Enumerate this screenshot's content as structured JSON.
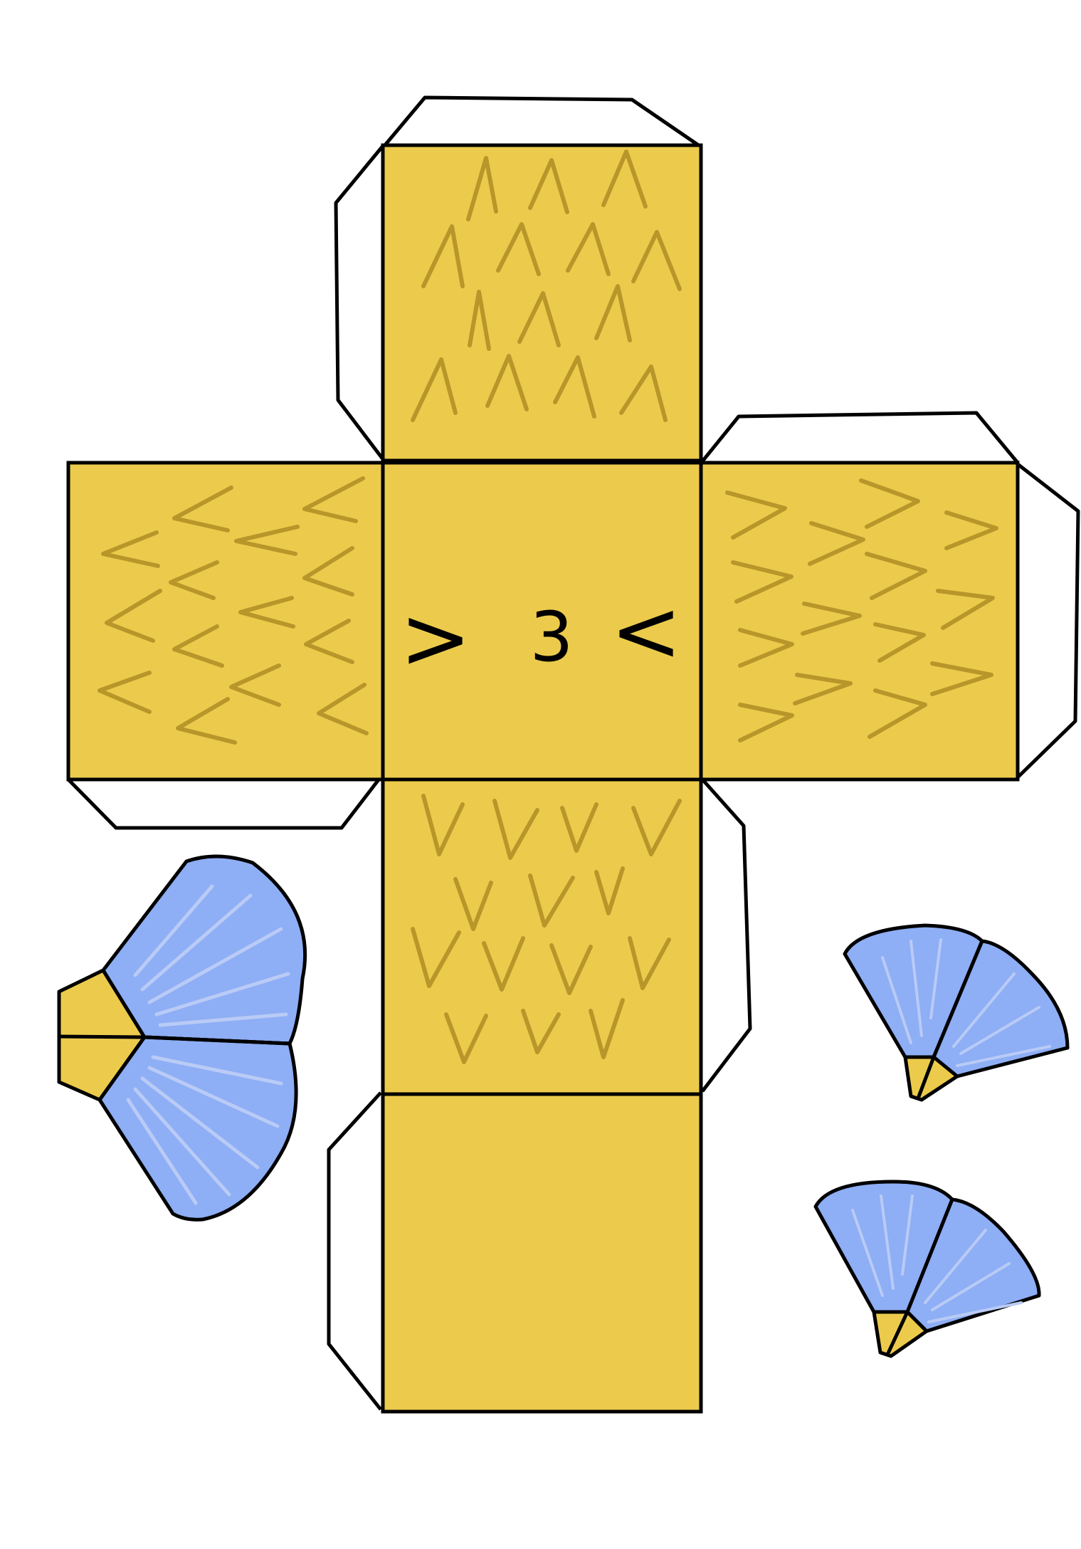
{
  "colors": {
    "body": "#ECCB4C",
    "feather": "#B8962A",
    "outline": "#000000",
    "tab": "#FFFFFF",
    "wing": "#8EAEF5",
    "wing_line": "#B9CBF6"
  },
  "face": {
    "left_eye": ">",
    "mouth": "3",
    "right_eye": "<"
  }
}
